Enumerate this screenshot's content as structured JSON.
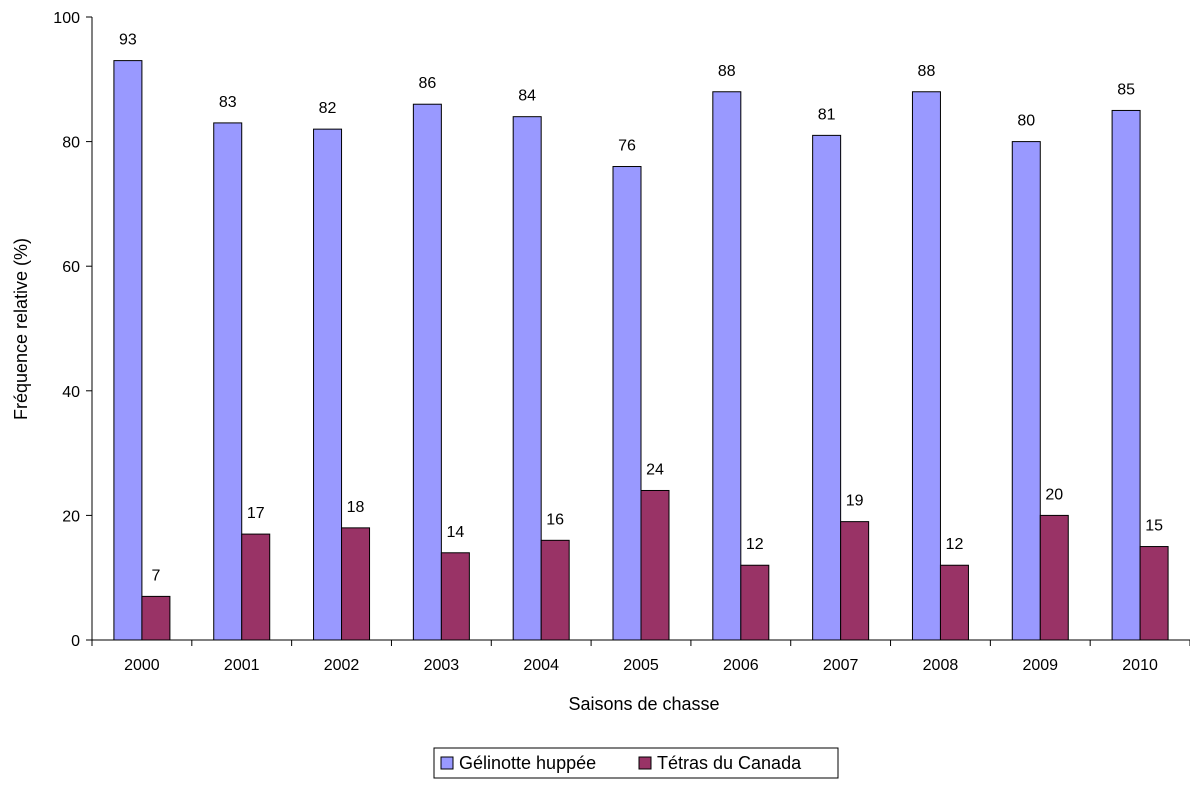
{
  "chart_data": {
    "type": "bar",
    "title": "",
    "xlabel": "Saisons de chasse",
    "ylabel": "Fréquence relative (%)",
    "ylim": [
      0,
      100
    ],
    "yticks": [
      0,
      20,
      40,
      60,
      80,
      100
    ],
    "grid": false,
    "legend_position": "bottom-center",
    "categories": [
      "2000",
      "2001",
      "2002",
      "2003",
      "2004",
      "2005",
      "2006",
      "2007",
      "2008",
      "2009",
      "2010"
    ],
    "series": [
      {
        "name": "Gélinotte huppée",
        "color": "#9999ff",
        "values": [
          93,
          83,
          82,
          86,
          84,
          76,
          88,
          81,
          88,
          80,
          85
        ]
      },
      {
        "name": "Tétras du Canada",
        "color": "#993366",
        "values": [
          7,
          17,
          18,
          14,
          16,
          24,
          12,
          19,
          12,
          20,
          15
        ]
      }
    ]
  }
}
